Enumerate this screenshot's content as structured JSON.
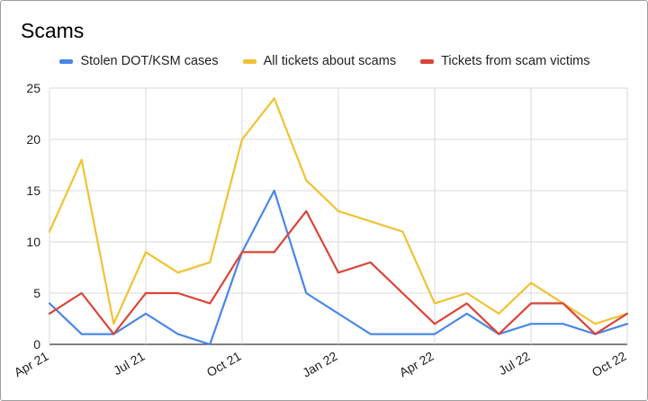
{
  "chart_data": {
    "type": "line",
    "title": "Scams",
    "xlabel": "",
    "ylabel": "",
    "ylim": [
      0,
      25
    ],
    "yticks": [
      0,
      5,
      10,
      15,
      20,
      25
    ],
    "x": [
      "2021-04",
      "2021-05",
      "2021-06",
      "2021-07",
      "2021-08",
      "2021-09",
      "2021-10",
      "2021-11",
      "2021-12",
      "2022-01",
      "2022-02",
      "2022-03",
      "2022-04",
      "2022-05",
      "2022-06",
      "2022-07",
      "2022-08",
      "2022-09",
      "2022-10"
    ],
    "xticks": [
      {
        "label": "Apr 21",
        "x": "2021-04"
      },
      {
        "label": "Jul 21",
        "x": "2021-07"
      },
      {
        "label": "Oct 21",
        "x": "2021-10"
      },
      {
        "label": "Jan 22",
        "x": "2022-01"
      },
      {
        "label": "Apr 22",
        "x": "2022-04"
      },
      {
        "label": "Jul 22",
        "x": "2022-07"
      },
      {
        "label": "Oct 22",
        "x": "2022-10"
      }
    ],
    "grid": true,
    "legend_position": "top",
    "series": [
      {
        "name": "Stolen DOT/KSM cases",
        "color": "#4a86e8",
        "values": [
          4,
          1,
          1,
          3,
          1,
          0,
          9,
          15,
          5,
          3,
          1,
          1,
          1,
          3,
          1,
          2,
          2,
          1,
          2
        ]
      },
      {
        "name": "All tickets about scams",
        "color": "#f1c232",
        "values": [
          11,
          18,
          2,
          9,
          7,
          8,
          20,
          24,
          16,
          13,
          12,
          11,
          4,
          5,
          3,
          6,
          4,
          2,
          3
        ]
      },
      {
        "name": "Tickets from scam victims",
        "color": "#db4437",
        "values": [
          3,
          5,
          1,
          5,
          5,
          4,
          9,
          9,
          13,
          7,
          8,
          5,
          2,
          4,
          1,
          4,
          4,
          1,
          3
        ]
      }
    ]
  }
}
